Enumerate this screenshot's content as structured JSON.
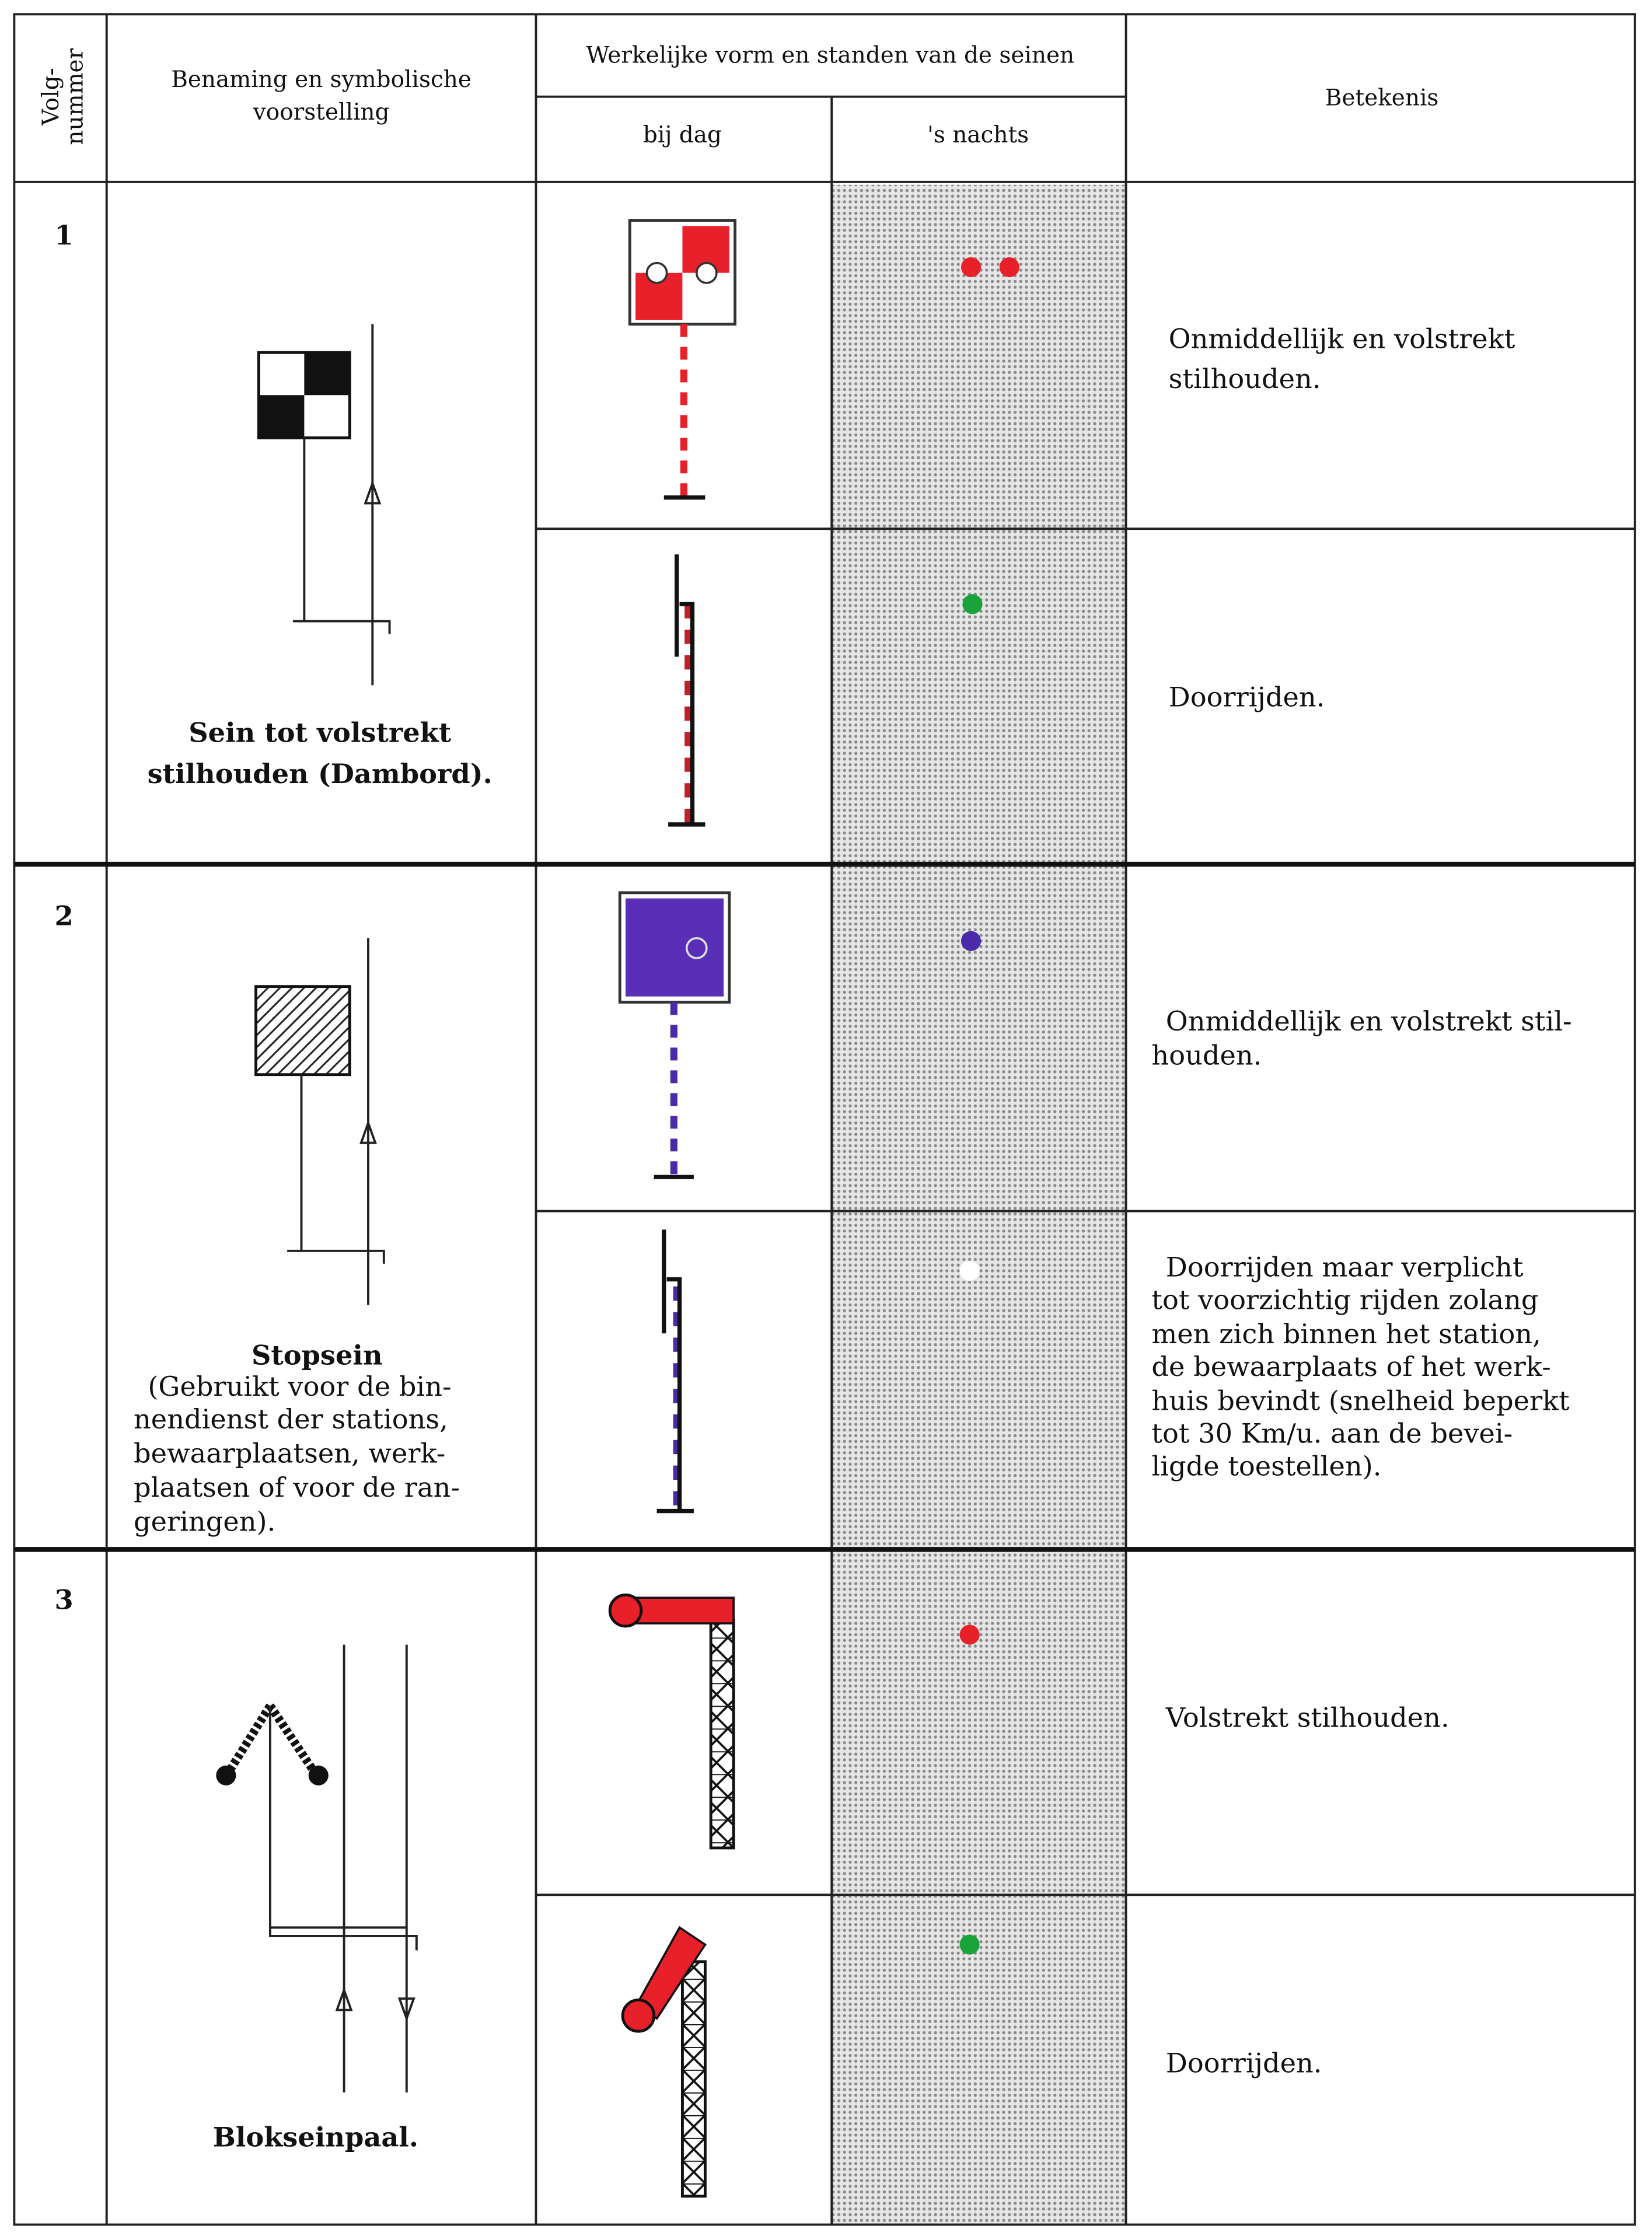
{
  "header": {
    "number": [
      "Volg-",
      "nummer"
    ],
    "name": [
      "Benaming en symbolische",
      "voorstelling"
    ],
    "appearance": "Werkelijke vorm en standen van de seinen",
    "day": "bij dag",
    "night": "'s nachts",
    "meaning": "Betekenis"
  },
  "rows": [
    {
      "number": "1",
      "name": [
        "Sein tot volstrekt",
        "stilhouden (Dambord)."
      ],
      "states": [
        {
          "meaning": [
            "Onmiddellijk en volstrekt",
            "stilhouden."
          ]
        },
        {
          "meaning": [
            "Doorrijden."
          ]
        }
      ]
    },
    {
      "number": "2",
      "name": [
        "Stopsein"
      ],
      "description": [
        "(Gebruikt voor de bin-",
        "nendienst der stations,",
        "bewaarplaatsen, werk-",
        "plaatsen of voor de ran-",
        "geringen)."
      ],
      "states": [
        {
          "meaning": [
            "Onmiddellijk en volstrekt stil-",
            "houden."
          ]
        },
        {
          "meaning": [
            "Doorrijden maar verplicht",
            "tot voorzichtig rijden zolang",
            "men zich binnen het station,",
            "de bewaarplaats of het werk-",
            "huis bevindt (snelheid beperkt",
            "tot 30 Km/u. aan de bevei-",
            "ligde toestellen)."
          ]
        }
      ]
    },
    {
      "number": "3",
      "name": [
        "Blokseinpaal."
      ],
      "states": [
        {
          "meaning": [
            "Volstrekt stilhouden."
          ]
        },
        {
          "meaning": [
            "Doorrijden."
          ]
        }
      ]
    }
  ]
}
